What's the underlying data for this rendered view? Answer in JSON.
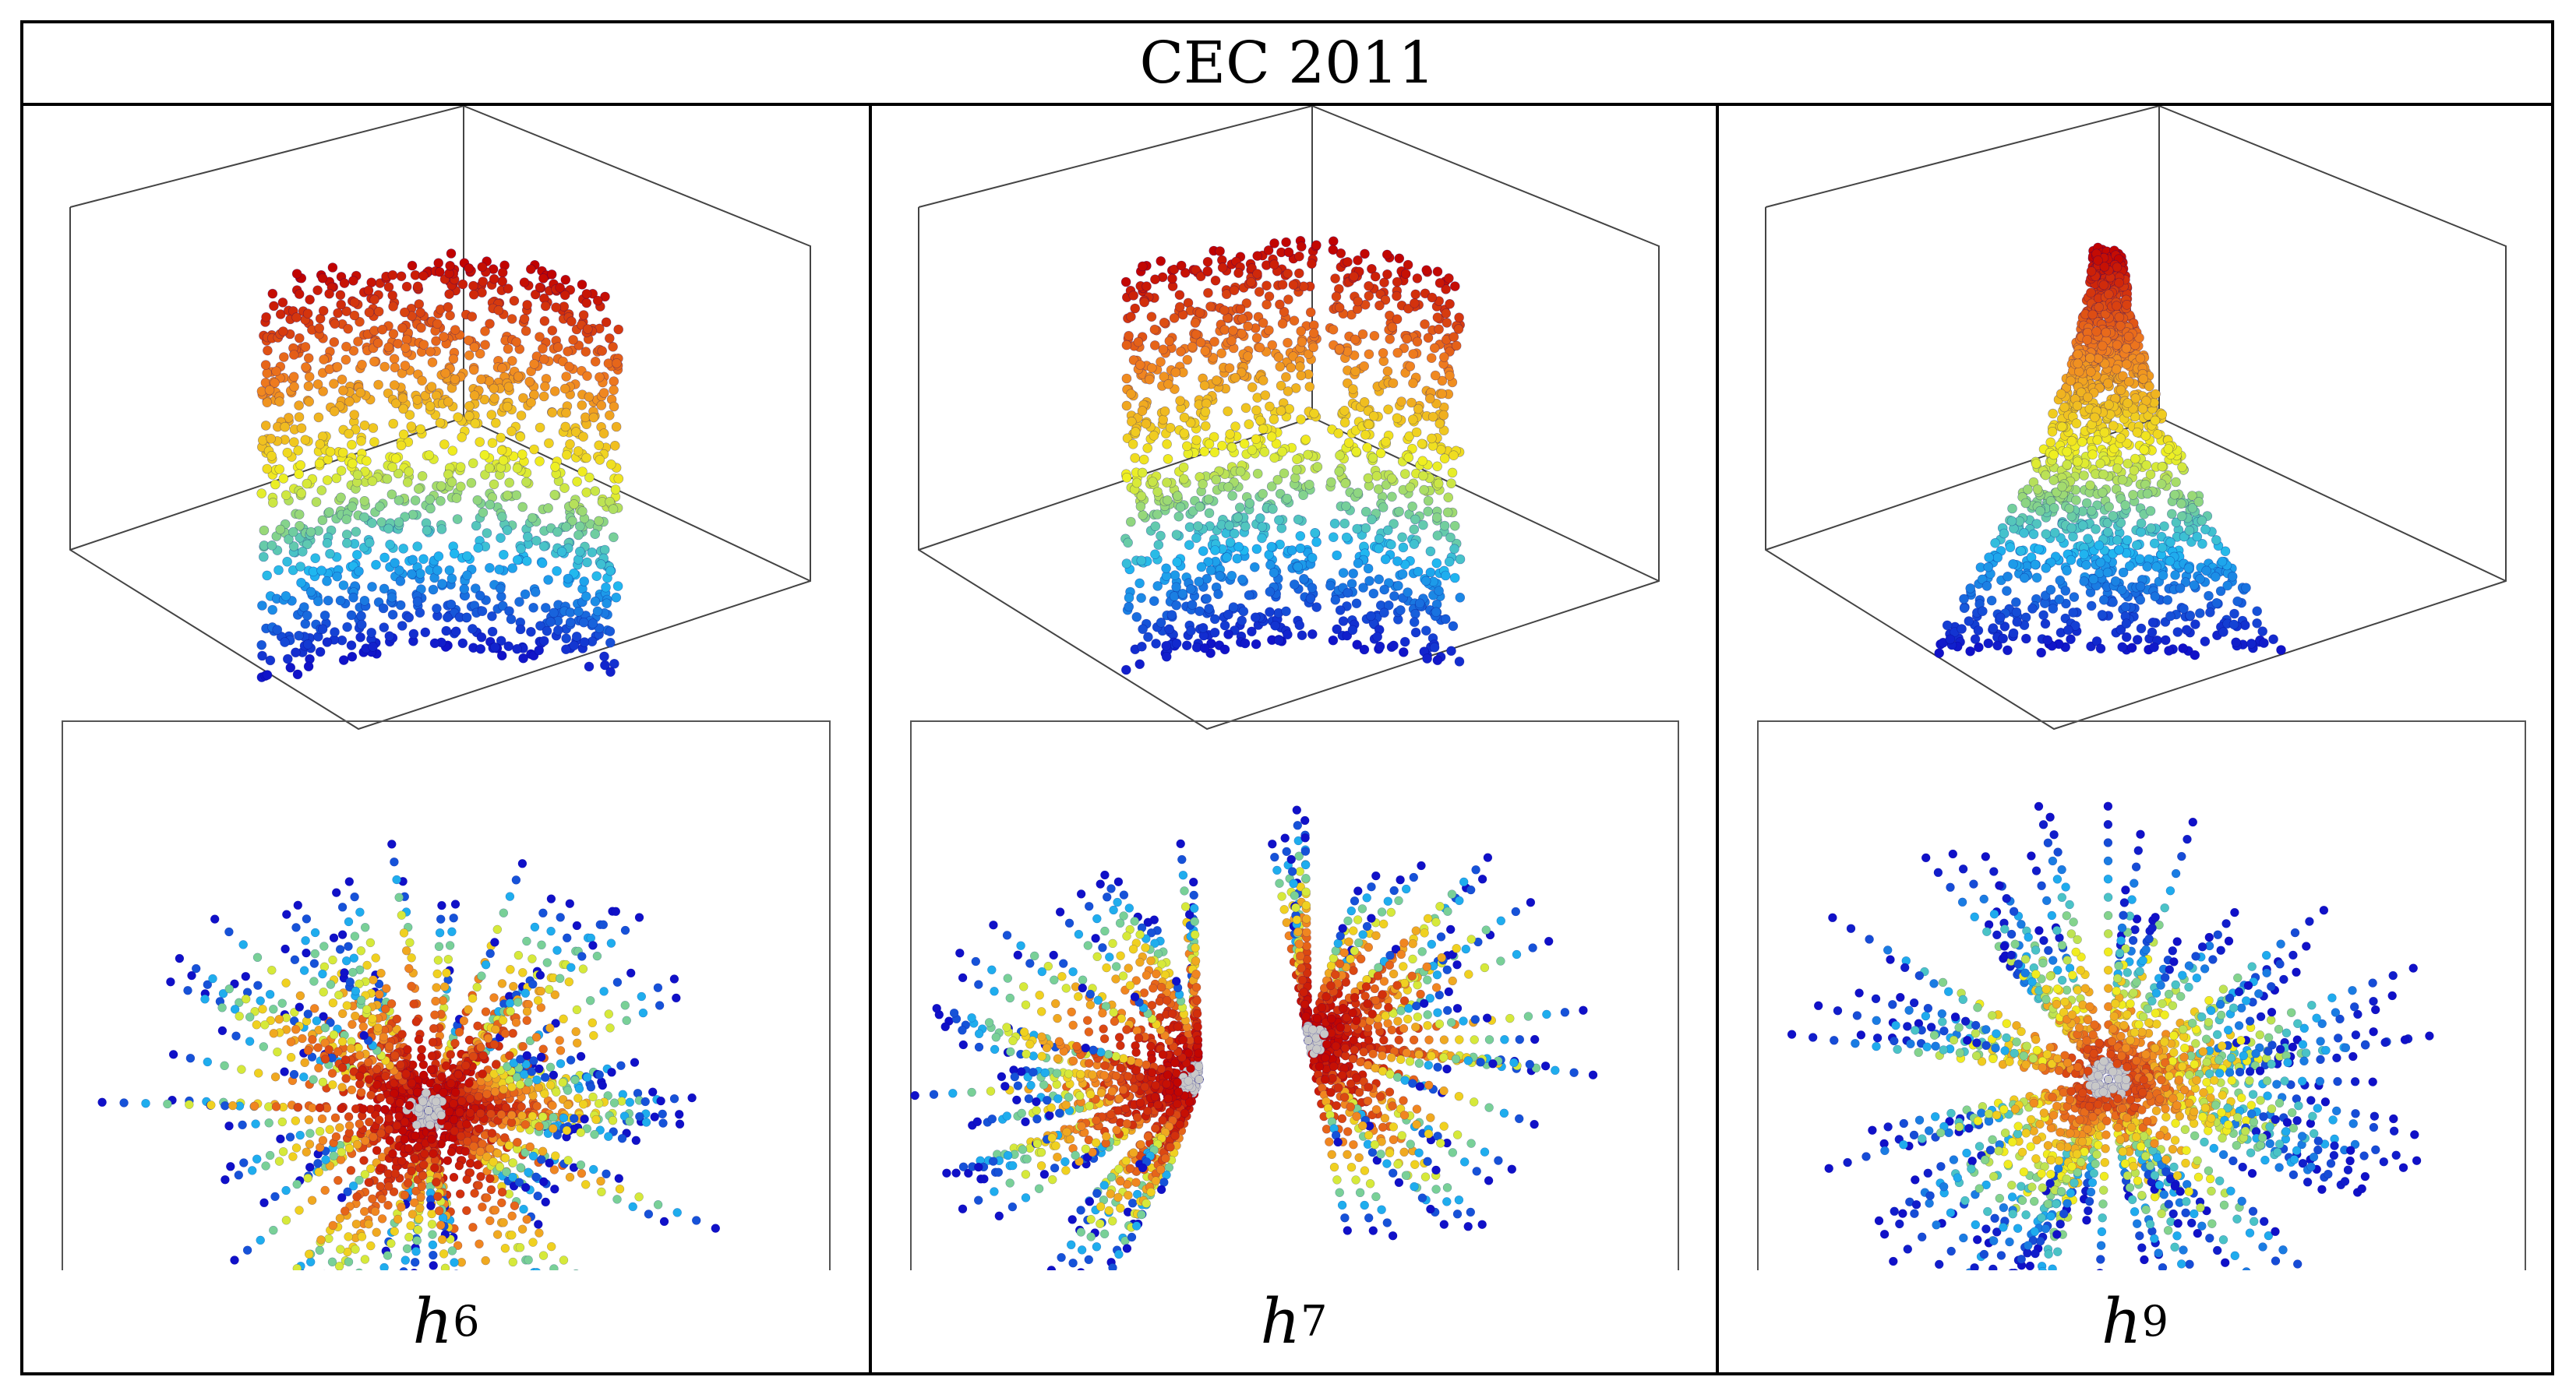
{
  "figure": {
    "title": "CEC 2011",
    "panels": [
      {
        "id": "h6",
        "label_main": "h",
        "label_sub": "6",
        "shape3d": "column",
        "shape2d": "star-cluster"
      },
      {
        "id": "h7",
        "label_main": "h",
        "label_sub": "7",
        "shape3d": "split-column",
        "shape2d": "split-fan"
      },
      {
        "id": "h9",
        "label_main": "h",
        "label_sub": "9",
        "shape3d": "cone",
        "shape2d": "wide-fan"
      }
    ]
  },
  "colors": {
    "low": "#1010c8",
    "mid_low": "#20b8f0",
    "mid": "#f0f020",
    "mid_high": "#f08020",
    "high": "#c00000",
    "trail": "#c8c8c8"
  }
}
